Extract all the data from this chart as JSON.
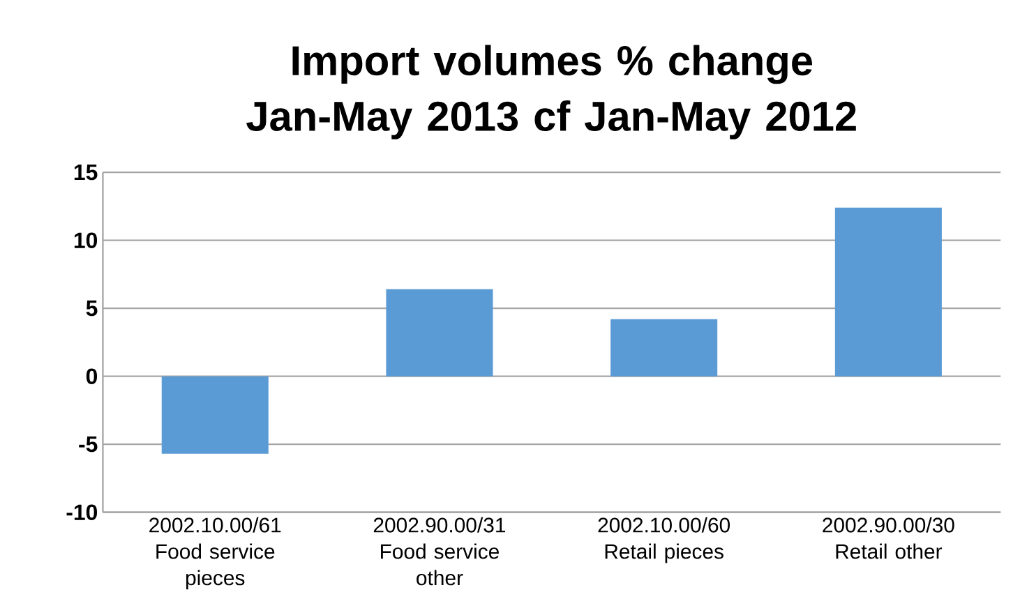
{
  "chart_data": {
    "type": "bar",
    "title": "Import volumes % change Jan-May 2013 cf Jan-May 2012",
    "categories": [
      "2002.10.00/61 Food service pieces",
      "2002.90.00/31 Food service other",
      "2002.10.00/60 Retail pieces",
      "2002.90.00/30 Retail other"
    ],
    "values": [
      -5.7,
      6.4,
      4.2,
      12.4
    ],
    "color": "#5b9bd5",
    "ylim": [
      -10,
      15
    ],
    "yticks": [
      -10,
      -5,
      0,
      5,
      10,
      15
    ],
    "grid": "y"
  }
}
